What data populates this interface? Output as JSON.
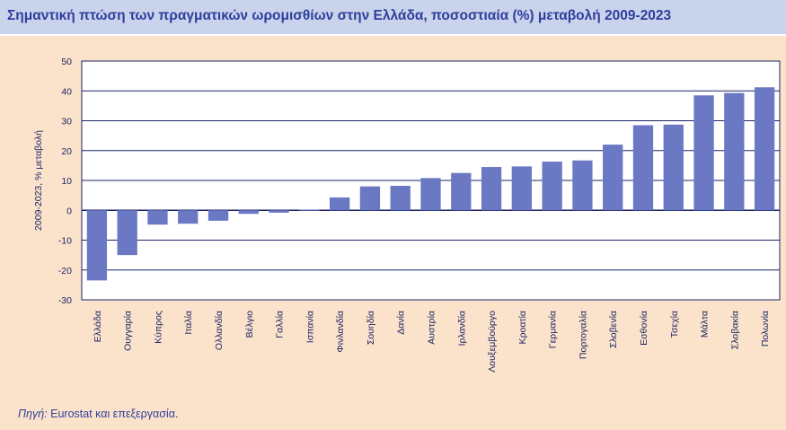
{
  "title": "Σημαντική πτώση των πραγματικών ωρομισθίων στην Ελλάδα, ποσοστιαία (%) μεταβολή 2009-2023",
  "source": {
    "label": "Πηγή:",
    "text": " Eurostat και επεξεργασία."
  },
  "colors": {
    "bar": "#6b78c3",
    "plot_bg": "#ffffff",
    "grid": "#1d2566",
    "title_band": "#c9d3ec",
    "page_bg": "#fbe3cb"
  },
  "chart_data": {
    "type": "bar",
    "title": "Σημαντική πτώση των πραγματικών ωρομισθίων στην Ελλάδα, ποσοστιαία (%) μεταβολή 2009-2023",
    "xlabel": "",
    "ylabel": "2009-2023, % μεταβολή",
    "ylim": [
      -30,
      50
    ],
    "yticks": [
      -30,
      -20,
      -10,
      0,
      10,
      20,
      30,
      40,
      50
    ],
    "grid": true,
    "categories": [
      "Ελλάδα",
      "Ουγγαρία",
      "Κύπρος",
      "Ιταλία",
      "Ολλανδία",
      "Βέλγιο",
      "Γαλλία",
      "Ισπανία",
      "Φινλανδία",
      "Σουηδία",
      "Δανία",
      "Αυστρία",
      "Ιρλανδία",
      "Λουξεμβούργο",
      "Κροατία",
      "Γερμανία",
      "Πορτογαλία",
      "Σλοβενία",
      "Εσθονία",
      "Τσεχία",
      "Μάλτα",
      "Σλοβακία",
      "Πολωνία"
    ],
    "values": [
      -23.5,
      -15,
      -4.8,
      -4.5,
      -3.5,
      -1.2,
      -0.8,
      0.2,
      4.3,
      8,
      8.2,
      10.8,
      12.5,
      14.5,
      14.7,
      16.3,
      16.7,
      22,
      28.5,
      28.7,
      38.5,
      39.3,
      41.2
    ]
  }
}
